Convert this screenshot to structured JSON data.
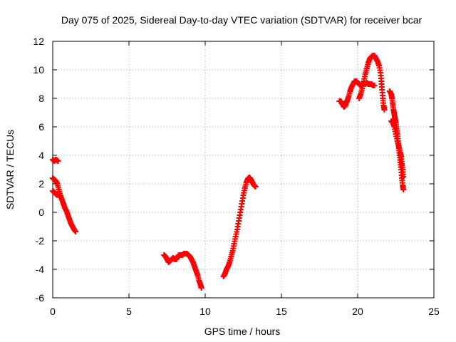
{
  "chart_data": {
    "type": "scatter",
    "title": "Day 075 of 2025, Sidereal Day-to-day VTEC variation (SDTVAR) for receiver bcar",
    "xlabel": "GPS time / hours",
    "ylabel": "SDTVAR / TECUs",
    "xlim": [
      0,
      25
    ],
    "ylim": [
      -6,
      12
    ],
    "xticks": [
      "0",
      "5",
      "10",
      "15",
      "20",
      "25"
    ],
    "yticks": [
      "-6",
      "-4",
      "-2",
      "0",
      "2",
      "4",
      "6",
      "8",
      "10",
      "12"
    ],
    "grid": true,
    "legend": "none",
    "marker": "plus",
    "color": "#ff0000",
    "segments": [
      [
        [
          0.0,
          3.7
        ],
        [
          0.1,
          3.6
        ],
        [
          0.2,
          3.7
        ],
        [
          0.35,
          3.6
        ]
      ],
      [
        [
          0.0,
          2.4
        ],
        [
          0.1,
          2.3
        ],
        [
          0.2,
          2.2
        ],
        [
          0.3,
          2.0
        ],
        [
          0.4,
          1.6
        ],
        [
          0.5,
          1.2
        ],
        [
          0.6,
          0.9
        ],
        [
          0.7,
          0.6
        ],
        [
          0.8,
          0.3
        ],
        [
          0.9,
          0.1
        ],
        [
          1.0,
          -0.2
        ],
        [
          1.1,
          -0.5
        ],
        [
          1.2,
          -0.8
        ],
        [
          1.3,
          -1.0
        ],
        [
          1.4,
          -1.2
        ],
        [
          1.5,
          -1.35
        ]
      ],
      [
        [
          0.0,
          1.5
        ],
        [
          0.1,
          1.4
        ],
        [
          0.2,
          1.3
        ],
        [
          0.3,
          1.2
        ]
      ],
      [
        [
          7.3,
          -3.0
        ],
        [
          7.4,
          -3.1
        ],
        [
          7.5,
          -3.3
        ],
        [
          7.6,
          -3.5
        ],
        [
          7.7,
          -3.4
        ],
        [
          7.8,
          -3.3
        ],
        [
          7.9,
          -3.2
        ],
        [
          8.0,
          -3.3
        ],
        [
          8.1,
          -3.3
        ],
        [
          8.2,
          -3.1
        ],
        [
          8.3,
          -3.0
        ],
        [
          8.4,
          -3.0
        ],
        [
          8.5,
          -3.0
        ],
        [
          8.6,
          -2.9
        ],
        [
          8.7,
          -2.9
        ],
        [
          8.8,
          -2.9
        ],
        [
          8.9,
          -3.0
        ],
        [
          9.0,
          -3.1
        ],
        [
          9.1,
          -3.3
        ],
        [
          9.2,
          -3.5
        ],
        [
          9.3,
          -3.8
        ],
        [
          9.4,
          -4.1
        ],
        [
          9.5,
          -4.4
        ],
        [
          9.6,
          -4.8
        ],
        [
          9.7,
          -5.1
        ],
        [
          9.75,
          -5.3
        ]
      ],
      [
        [
          11.2,
          -4.5
        ],
        [
          11.3,
          -4.3
        ],
        [
          11.4,
          -4.0
        ],
        [
          11.5,
          -3.8
        ],
        [
          11.6,
          -3.5
        ],
        [
          11.7,
          -3.1
        ],
        [
          11.8,
          -2.7
        ],
        [
          11.9,
          -2.2
        ],
        [
          12.0,
          -1.7
        ],
        [
          12.1,
          -1.2
        ],
        [
          12.2,
          -0.6
        ],
        [
          12.3,
          0.0
        ],
        [
          12.4,
          0.6
        ],
        [
          12.5,
          1.2
        ],
        [
          12.6,
          1.7
        ],
        [
          12.7,
          2.1
        ],
        [
          12.8,
          2.35
        ],
        [
          12.9,
          2.45
        ],
        [
          13.0,
          2.3
        ],
        [
          13.1,
          2.1
        ],
        [
          13.2,
          1.9
        ],
        [
          13.3,
          1.8
        ]
      ],
      [
        [
          18.8,
          7.8
        ],
        [
          18.9,
          7.8
        ],
        [
          19.0,
          7.6
        ],
        [
          19.1,
          7.4
        ],
        [
          19.2,
          7.5
        ],
        [
          19.3,
          7.8
        ],
        [
          19.4,
          8.1
        ],
        [
          19.5,
          8.5
        ],
        [
          19.6,
          8.8
        ],
        [
          19.7,
          9.0
        ],
        [
          19.8,
          9.2
        ],
        [
          19.9,
          9.2
        ],
        [
          20.0,
          9.1
        ],
        [
          20.1,
          9.0
        ],
        [
          20.2,
          8.9
        ],
        [
          20.3,
          9.0
        ],
        [
          20.4,
          9.0
        ],
        [
          20.5,
          9.0
        ],
        [
          20.6,
          9.1
        ],
        [
          20.7,
          9.0
        ],
        [
          20.8,
          9.0
        ],
        [
          20.9,
          9.0
        ],
        [
          21.0,
          8.9
        ],
        [
          21.1,
          8.9
        ]
      ],
      [
        [
          20.1,
          8.0
        ],
        [
          20.2,
          8.3
        ],
        [
          20.3,
          8.7
        ],
        [
          20.4,
          9.2
        ],
        [
          20.5,
          9.7
        ],
        [
          20.6,
          10.1
        ],
        [
          20.7,
          10.5
        ],
        [
          20.8,
          10.8
        ],
        [
          20.9,
          10.9
        ],
        [
          21.0,
          11.0
        ],
        [
          21.1,
          11.0
        ],
        [
          21.2,
          10.8
        ],
        [
          21.3,
          10.6
        ],
        [
          21.4,
          10.3
        ],
        [
          21.5,
          9.8
        ],
        [
          21.55,
          9.2
        ],
        [
          21.6,
          8.6
        ],
        [
          21.65,
          8.0
        ],
        [
          21.7,
          7.5
        ],
        [
          21.75,
          7.2
        ]
      ],
      [
        [
          22.1,
          8.5
        ],
        [
          22.2,
          8.3
        ],
        [
          22.25,
          8.0
        ],
        [
          22.3,
          7.6
        ],
        [
          22.35,
          7.2
        ],
        [
          22.4,
          6.9
        ],
        [
          22.45,
          6.6
        ],
        [
          22.5,
          6.3
        ],
        [
          22.55,
          5.9
        ],
        [
          22.6,
          5.5
        ],
        [
          22.65,
          5.0
        ],
        [
          22.7,
          4.5
        ],
        [
          22.75,
          4.0
        ],
        [
          22.8,
          3.5
        ],
        [
          22.85,
          3.0
        ],
        [
          22.9,
          2.4
        ],
        [
          22.95,
          1.9
        ],
        [
          23.0,
          1.6
        ]
      ],
      [
        [
          22.2,
          6.4
        ],
        [
          22.3,
          6.3
        ],
        [
          22.4,
          6.0
        ],
        [
          22.5,
          5.5
        ],
        [
          22.6,
          5.0
        ],
        [
          22.7,
          4.6
        ],
        [
          22.8,
          4.2
        ],
        [
          22.85,
          3.9
        ],
        [
          22.9,
          3.4
        ],
        [
          22.95,
          3.0
        ],
        [
          23.0,
          2.5
        ]
      ]
    ]
  }
}
